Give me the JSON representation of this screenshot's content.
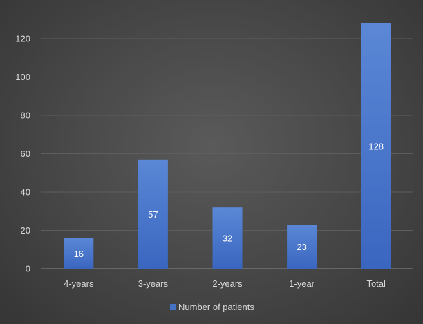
{
  "chart_data": {
    "type": "bar",
    "categories": [
      "4-years",
      "3-years",
      "2-years",
      "1-year",
      "Total"
    ],
    "series": [
      {
        "name": "Number of patients",
        "values": [
          16,
          57,
          32,
          23,
          128
        ],
        "color": "#4472c4"
      }
    ],
    "data_labels": [
      "16",
      "57",
      "32",
      "23",
      "128"
    ],
    "y_ticks": [
      "0",
      "20",
      "40",
      "60",
      "80",
      "100",
      "120"
    ],
    "ylim": [
      0,
      130
    ],
    "grid": true,
    "legend_position": "bottom",
    "colors": {
      "background": "#464646",
      "gridline": "#5e5e5e",
      "axis_text": "#d9d9d9",
      "bar": "#4472c4"
    }
  }
}
